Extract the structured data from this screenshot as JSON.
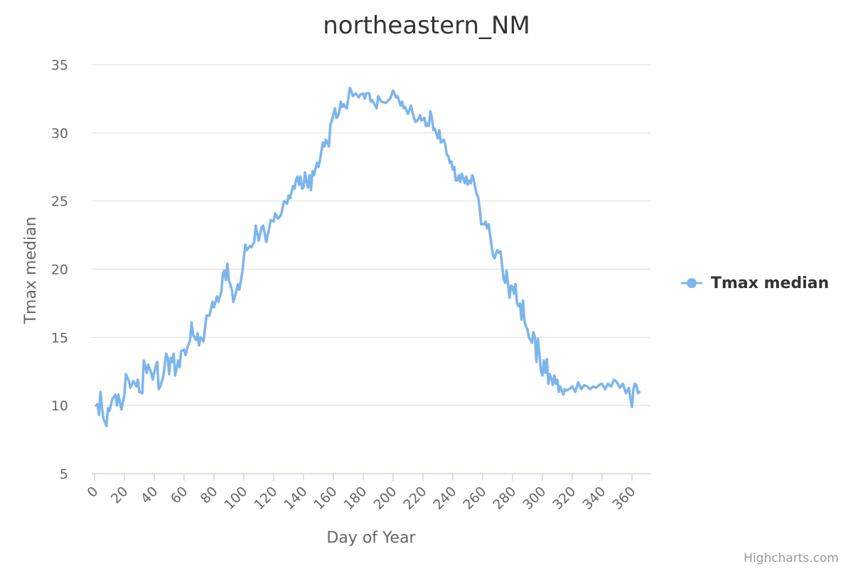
{
  "chart_data": {
    "type": "line",
    "title": "northeastern_NM",
    "xlabel": "Day of Year",
    "ylabel": "Tmax median",
    "xlim": [
      0,
      366
    ],
    "ylim": [
      5,
      35
    ],
    "x_ticks": [
      0,
      20,
      40,
      60,
      80,
      100,
      120,
      140,
      160,
      180,
      200,
      220,
      240,
      260,
      280,
      300,
      320,
      340,
      360
    ],
    "y_ticks": [
      5,
      10,
      15,
      20,
      25,
      30,
      35
    ],
    "grid": true,
    "legend_position": "right",
    "series": [
      {
        "name": "Tmax median",
        "color": "#7cb5ec",
        "points": [
          [
            1,
            10.0
          ],
          [
            2,
            10.1
          ],
          [
            3,
            9.3
          ],
          [
            4,
            11.0
          ],
          [
            5,
            9.8
          ],
          [
            6,
            9.0
          ],
          [
            8,
            8.5
          ],
          [
            9,
            9.8
          ],
          [
            10,
            9.6
          ],
          [
            12,
            10.5
          ],
          [
            14,
            10.8
          ],
          [
            15,
            10.0
          ],
          [
            16,
            10.8
          ],
          [
            18,
            9.7
          ],
          [
            20,
            10.8
          ],
          [
            21,
            12.3
          ],
          [
            23,
            11.8
          ],
          [
            24,
            11.3
          ],
          [
            26,
            11.8
          ],
          [
            28,
            11.4
          ],
          [
            29,
            11.9
          ],
          [
            30,
            11.0
          ],
          [
            32,
            10.9
          ],
          [
            33,
            13.3
          ],
          [
            34,
            12.9
          ],
          [
            35,
            12.4
          ],
          [
            36,
            13.0
          ],
          [
            38,
            12.4
          ],
          [
            39,
            11.9
          ],
          [
            41,
            12.9
          ],
          [
            42,
            13.2
          ],
          [
            43,
            11.2
          ],
          [
            44,
            11.4
          ],
          [
            46,
            12.1
          ],
          [
            48,
            13.8
          ],
          [
            49,
            13.5
          ],
          [
            50,
            12.3
          ],
          [
            51,
            13.5
          ],
          [
            52,
            13.2
          ],
          [
            53,
            13.8
          ],
          [
            54,
            12.2
          ],
          [
            56,
            13.3
          ],
          [
            57,
            12.8
          ],
          [
            58,
            14.0
          ],
          [
            60,
            14.1
          ],
          [
            61,
            13.7
          ],
          [
            62,
            14.2
          ],
          [
            64,
            14.8
          ],
          [
            65,
            16.1
          ],
          [
            66,
            15.2
          ],
          [
            68,
            14.8
          ],
          [
            69,
            15.3
          ],
          [
            70,
            14.4
          ],
          [
            71,
            15.0
          ],
          [
            73,
            14.7
          ],
          [
            75,
            16.6
          ],
          [
            77,
            16.6
          ],
          [
            79,
            17.6
          ],
          [
            80,
            17.2
          ],
          [
            82,
            18.0
          ],
          [
            83,
            17.6
          ],
          [
            85,
            18.4
          ],
          [
            86,
            19.7
          ],
          [
            87,
            19.9
          ],
          [
            88,
            19.2
          ],
          [
            89,
            20.4
          ],
          [
            90,
            19.2
          ],
          [
            92,
            18.5
          ],
          [
            93,
            17.6
          ],
          [
            95,
            18.4
          ],
          [
            96,
            18.9
          ],
          [
            97,
            18.5
          ],
          [
            99,
            19.8
          ],
          [
            101,
            21.8
          ],
          [
            102,
            21.4
          ],
          [
            104,
            21.7
          ],
          [
            105,
            21.6
          ],
          [
            107,
            22.0
          ],
          [
            108,
            23.2
          ],
          [
            110,
            22.1
          ],
          [
            112,
            23.1
          ],
          [
            113,
            23.2
          ],
          [
            114,
            22.6
          ],
          [
            115,
            22.0
          ],
          [
            117,
            23.0
          ],
          [
            118,
            23.6
          ],
          [
            120,
            23.5
          ],
          [
            121,
            24.1
          ],
          [
            123,
            23.7
          ],
          [
            125,
            24.0
          ],
          [
            127,
            25.0
          ],
          [
            129,
            24.8
          ],
          [
            130,
            25.4
          ],
          [
            131,
            25.2
          ],
          [
            133,
            26.1
          ],
          [
            134,
            25.9
          ],
          [
            135,
            26.6
          ],
          [
            136,
            26.8
          ],
          [
            137,
            26.2
          ],
          [
            138,
            26.8
          ],
          [
            139,
            25.9
          ],
          [
            140,
            26.0
          ],
          [
            141,
            27.1
          ],
          [
            142,
            26.4
          ],
          [
            143,
            26.0
          ],
          [
            144,
            26.9
          ],
          [
            145,
            25.8
          ],
          [
            146,
            27.2
          ],
          [
            147,
            26.9
          ],
          [
            149,
            27.8
          ],
          [
            150,
            27.5
          ],
          [
            151,
            28.0
          ],
          [
            153,
            29.3
          ],
          [
            154,
            29.0
          ],
          [
            155,
            29.5
          ],
          [
            157,
            29.0
          ],
          [
            158,
            30.6
          ],
          [
            159,
            30.9
          ],
          [
            161,
            31.8
          ],
          [
            162,
            31.1
          ],
          [
            163,
            31.2
          ],
          [
            164,
            31.6
          ],
          [
            165,
            32.3
          ],
          [
            166,
            31.9
          ],
          [
            167,
            32.1
          ],
          [
            168,
            31.9
          ],
          [
            169,
            31.8
          ],
          [
            170,
            32.5
          ],
          [
            171,
            33.3
          ],
          [
            172,
            33.1
          ],
          [
            173,
            32.7
          ],
          [
            175,
            32.9
          ],
          [
            177,
            32.6
          ],
          [
            178,
            32.8
          ],
          [
            180,
            32.9
          ],
          [
            181,
            32.5
          ],
          [
            182,
            32.9
          ],
          [
            184,
            32.9
          ],
          [
            185,
            32.3
          ],
          [
            186,
            32.4
          ],
          [
            188,
            32.0
          ],
          [
            189,
            31.8
          ],
          [
            190,
            32.7
          ],
          [
            192,
            32.3
          ],
          [
            195,
            32.2
          ],
          [
            198,
            32.5
          ],
          [
            200,
            33.1
          ],
          [
            201,
            32.9
          ],
          [
            202,
            32.6
          ],
          [
            203,
            32.7
          ],
          [
            205,
            32.0
          ],
          [
            206,
            32.3
          ],
          [
            207,
            31.8
          ],
          [
            208,
            31.9
          ],
          [
            210,
            31.4
          ],
          [
            212,
            32.0
          ],
          [
            213,
            31.5
          ],
          [
            215,
            30.8
          ],
          [
            217,
            31.0
          ],
          [
            218,
            31.3
          ],
          [
            219,
            30.9
          ],
          [
            221,
            31.1
          ],
          [
            222,
            30.5
          ],
          [
            223,
            30.7
          ],
          [
            224,
            30.5
          ],
          [
            225,
            31.6
          ],
          [
            226,
            31.1
          ],
          [
            227,
            30.2
          ],
          [
            228,
            30.3
          ],
          [
            230,
            29.6
          ],
          [
            231,
            30.2
          ],
          [
            232,
            29.3
          ],
          [
            234,
            29.5
          ],
          [
            235,
            29.1
          ],
          [
            236,
            28.4
          ],
          [
            237,
            28.3
          ],
          [
            238,
            27.8
          ],
          [
            239,
            27.9
          ],
          [
            240,
            27.3
          ],
          [
            241,
            27.5
          ],
          [
            242,
            26.5
          ],
          [
            243,
            26.5
          ],
          [
            244,
            26.9
          ],
          [
            245,
            26.4
          ],
          [
            246,
            27.0
          ],
          [
            247,
            26.7
          ],
          [
            248,
            26.3
          ],
          [
            249,
            26.8
          ],
          [
            250,
            26.2
          ],
          [
            251,
            26.5
          ],
          [
            252,
            26.3
          ],
          [
            253,
            26.9
          ],
          [
            254,
            26.6
          ],
          [
            255,
            26.0
          ],
          [
            256,
            25.5
          ],
          [
            257,
            25.3
          ],
          [
            258,
            24.5
          ],
          [
            259,
            23.3
          ],
          [
            260,
            23.3
          ],
          [
            261,
            23.3
          ],
          [
            262,
            23.5
          ],
          [
            263,
            23.0
          ],
          [
            264,
            23.3
          ],
          [
            265,
            22.5
          ],
          [
            266,
            21.7
          ],
          [
            267,
            21.0
          ],
          [
            268,
            20.8
          ],
          [
            269,
            21.2
          ],
          [
            270,
            21.4
          ],
          [
            271,
            21.2
          ],
          [
            272,
            21.3
          ],
          [
            273,
            20.3
          ],
          [
            274,
            19.3
          ],
          [
            275,
            19.0
          ],
          [
            276,
            19.9
          ],
          [
            277,
            18.9
          ],
          [
            278,
            17.9
          ],
          [
            279,
            18.8
          ],
          [
            280,
            18.7
          ],
          [
            281,
            18.2
          ],
          [
            282,
            18.9
          ],
          [
            283,
            17.5
          ],
          [
            284,
            17.3
          ],
          [
            285,
            17.5
          ],
          [
            286,
            16.3
          ],
          [
            287,
            17.7
          ],
          [
            288,
            16.2
          ],
          [
            289,
            15.8
          ],
          [
            290,
            15.6
          ],
          [
            291,
            15.0
          ],
          [
            292,
            14.8
          ],
          [
            293,
            14.6
          ],
          [
            294,
            15.4
          ],
          [
            295,
            15.0
          ],
          [
            296,
            13.2
          ],
          [
            297,
            14.9
          ],
          [
            298,
            13.8
          ],
          [
            299,
            12.6
          ],
          [
            300,
            12.2
          ],
          [
            301,
            13.3
          ],
          [
            302,
            12.4
          ],
          [
            303,
            13.4
          ],
          [
            304,
            11.6
          ],
          [
            305,
            12.3
          ],
          [
            306,
            12.0
          ],
          [
            307,
            11.5
          ],
          [
            308,
            12.2
          ],
          [
            309,
            11.6
          ],
          [
            310,
            11.9
          ],
          [
            311,
            11.0
          ],
          [
            312,
            11.4
          ],
          [
            313,
            11.1
          ],
          [
            314,
            10.8
          ],
          [
            315,
            11.2
          ],
          [
            316,
            11.1
          ],
          [
            318,
            11.2
          ],
          [
            320,
            11.4
          ],
          [
            322,
            11.0
          ],
          [
            324,
            11.7
          ],
          [
            326,
            11.2
          ],
          [
            328,
            11.5
          ],
          [
            330,
            11.4
          ],
          [
            332,
            11.2
          ],
          [
            334,
            11.4
          ],
          [
            336,
            11.3
          ],
          [
            338,
            11.5
          ],
          [
            340,
            11.6
          ],
          [
            342,
            11.2
          ],
          [
            344,
            11.6
          ],
          [
            346,
            11.4
          ],
          [
            348,
            11.9
          ],
          [
            350,
            11.7
          ],
          [
            352,
            11.3
          ],
          [
            354,
            11.6
          ],
          [
            356,
            10.9
          ],
          [
            358,
            11.3
          ],
          [
            359,
            10.5
          ],
          [
            360,
            9.9
          ],
          [
            361,
            11.2
          ],
          [
            362,
            11.6
          ],
          [
            363,
            11.5
          ],
          [
            364,
            10.9
          ],
          [
            365,
            11.0
          ]
        ]
      }
    ]
  },
  "credits": "Highcharts.com"
}
